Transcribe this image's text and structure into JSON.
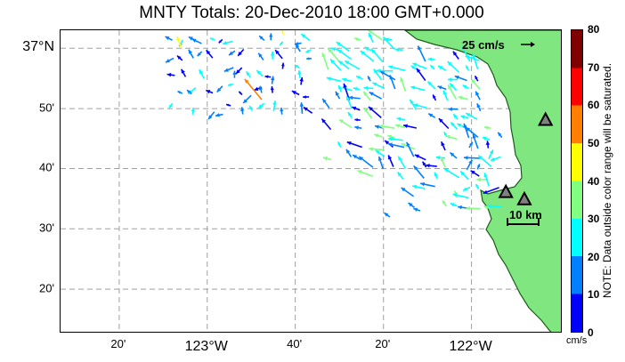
{
  "title": "MNTY Totals: 20-Dec-2010 18:00 GMT+0.000",
  "lon_labels": [
    {
      "text": "20'",
      "lon": -123.333,
      "big": false
    },
    {
      "text": "123°W",
      "lon": -123.0,
      "big": true
    },
    {
      "text": "40'",
      "lon": -122.667,
      "big": false
    },
    {
      "text": "20'",
      "lon": -122.333,
      "big": false
    },
    {
      "text": "122°W",
      "lon": -122.0,
      "big": true
    }
  ],
  "lat_labels": [
    {
      "text": "37°N",
      "lat": 37.0,
      "big": true
    },
    {
      "text": "50'",
      "lat": 36.833,
      "big": false
    },
    {
      "text": "40'",
      "lat": 36.667,
      "big": false
    },
    {
      "text": "30'",
      "lat": 36.5,
      "big": false
    },
    {
      "text": "20'",
      "lat": 36.333,
      "big": false
    }
  ],
  "colorbar": {
    "ticks": [
      "0",
      "10",
      "20",
      "30",
      "40",
      "50",
      "60",
      "70",
      "80"
    ],
    "unit": "cm/s",
    "note": "NOTE: Data outside color range will be saturated."
  },
  "reference_vector_label": "25 cm/s",
  "scale_bar_label": "10 km",
  "colors": {
    "land": "#80e680",
    "coast": "#1a5c1a",
    "grid": "#a0a0a0",
    "station": "#000000"
  },
  "stations": [
    {
      "lon": -121.87,
      "lat": 36.6
    },
    {
      "lon": -121.8,
      "lat": 36.58
    },
    {
      "lon": -121.72,
      "lat": 36.8
    }
  ]
}
